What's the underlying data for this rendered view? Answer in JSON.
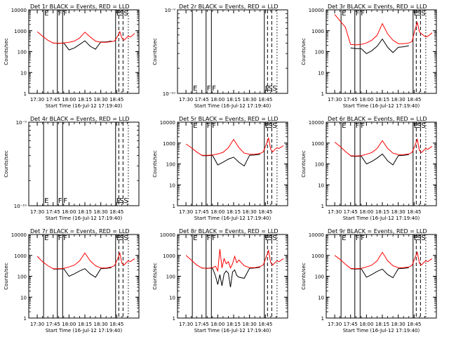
{
  "figure": {
    "panels": [
      {
        "title": "Det 1r  BLACK = Events, RED = LLD",
        "ylabel": "Counts/sec",
        "xlabel": "Start Time (16-Jul-12 17:19:40)",
        "yscale": "log",
        "ylim": [
          1,
          10000
        ],
        "yticks": [
          "1",
          "10",
          "100",
          "1000",
          "10000"
        ],
        "data_present": true
      },
      {
        "title": "Det 2r  BLACK = Events, RED = LLD",
        "ylabel": "Counts/sec",
        "xlabel": "Start Time (16-Jul-12 17:19:40)",
        "yscale": "log",
        "ylim": [
          1e-10,
          1e-09
        ],
        "yticks": [
          "10⁻¹⁰",
          "10⁻⁹"
        ],
        "data_present": false
      },
      {
        "title": "Det 3r  BLACK = Events, RED = LLD",
        "ylabel": "Counts/sec",
        "xlabel": "Start Time (16-Jul-12 17:19:40)",
        "yscale": "log",
        "ylim": [
          1,
          10000
        ],
        "yticks": [
          "1",
          "10",
          "100",
          "1000",
          "10000"
        ],
        "data_present": true
      },
      {
        "title": "Det 4r  BLACK = Events, RED = LLD",
        "ylabel": "Counts/sec",
        "xlabel": "Start Time (16-Jul-12 17:19:40)",
        "yscale": "log",
        "ylim": [
          1e-10,
          1e-09
        ],
        "yticks": [
          "10⁻¹⁰",
          "10⁻⁹"
        ],
        "data_present": false
      },
      {
        "title": "Det 5r  BLACK = Events, RED = LLD",
        "ylabel": "Counts/sec",
        "xlabel": "Start Time (16-Jul-12 17:19:40)",
        "yscale": "log",
        "ylim": [
          1,
          10000
        ],
        "yticks": [
          "1",
          "10",
          "100",
          "1000",
          "10000"
        ],
        "data_present": true
      },
      {
        "title": "Det 6r  BLACK = Events, RED = LLD",
        "ylabel": "Counts/sec",
        "xlabel": "Start Time (16-Jul-12 17:19:40)",
        "yscale": "log",
        "ylim": [
          1,
          10000
        ],
        "yticks": [
          "1",
          "10",
          "100",
          "1000",
          "10000"
        ],
        "data_present": true
      },
      {
        "title": "Det 7r  BLACK = Events, RED = LLD",
        "ylabel": "Counts/sec",
        "xlabel": "Start Time (16-Jul-12 17:19:40)",
        "yscale": "log",
        "ylim": [
          1,
          10000
        ],
        "yticks": [
          "1",
          "10",
          "100",
          "1000",
          "10000"
        ],
        "data_present": true
      },
      {
        "title": "Det 8r  BLACK = Events, RED = LLD",
        "ylabel": "Counts/sec",
        "xlabel": "Start Time (16-Jul-12 17:19:40)",
        "yscale": "log",
        "ylim": [
          1,
          10000
        ],
        "yticks": [
          "1",
          "10",
          "100",
          "1000",
          "10000"
        ],
        "data_present": true
      },
      {
        "title": "Det 9r  BLACK = Events, RED = LLD",
        "ylabel": "Counts/sec",
        "xlabel": "Start Time (16-Jul-12 17:19:40)",
        "yscale": "log",
        "ylim": [
          1,
          10000
        ],
        "yticks": [
          "1",
          "10",
          "100",
          "1000",
          "10000"
        ],
        "data_present": true
      }
    ],
    "xticks": [
      "17:30",
      "17:45",
      "18:00",
      "18:15",
      "18:30",
      "18:45"
    ],
    "markers": [
      {
        "label": "E",
        "minute": 6,
        "style": "solid"
      },
      {
        "label": "F",
        "minute": 19,
        "style": "solid"
      },
      {
        "label": "F",
        "minute": 24,
        "style": "solid"
      },
      {
        "label": "E",
        "minute": 74,
        "style": "solid"
      },
      {
        "label": "S",
        "minute": 77,
        "style": "dashed"
      },
      {
        "label": "S",
        "minute": 81,
        "style": "dashed"
      },
      {
        "label": "",
        "minute": 86,
        "style": "dotted"
      }
    ],
    "colors": {
      "events": "#000000",
      "lld": "#ff0000",
      "axes": "#000000"
    }
  },
  "chart_data": [
    {
      "type": "line",
      "title": "Det 1r  BLACK = Events, RED = LLD",
      "xlabel": "Start Time (16-Jul-12 17:19:40)",
      "ylabel": "Counts/sec",
      "ylim": [
        1,
        10000
      ],
      "x": [
        0,
        5,
        10,
        15,
        20,
        25,
        30,
        35,
        40,
        45,
        50,
        55,
        60,
        65,
        70,
        73,
        76,
        78,
        80,
        82,
        84,
        86,
        88,
        90,
        92
      ],
      "series": [
        {
          "name": "BLACK = Events",
          "values": [
            null,
            null,
            null,
            260,
            250,
            260,
            120,
            150,
            220,
            330,
            180,
            130,
            290,
            290,
            320,
            null,
            null,
            null,
            null,
            null,
            null,
            null,
            null,
            null,
            null
          ]
        },
        {
          "name": "RED = LLD",
          "values": [
            900,
            550,
            350,
            260,
            250,
            260,
            280,
            320,
            450,
            850,
            500,
            320,
            280,
            280,
            300,
            320,
            550,
            900,
            450,
            350,
            450,
            550,
            500,
            600,
            750
          ]
        }
      ]
    },
    {
      "type": "line",
      "title": "Det 2r  BLACK = Events, RED = LLD",
      "xlabel": "Start Time (16-Jul-12 17:19:40)",
      "ylabel": "Counts/sec",
      "x": [],
      "series": []
    },
    {
      "type": "line",
      "title": "Det 3r  BLACK = Events, RED = LLD",
      "xlabel": "Start Time (16-Jul-12 17:19:40)",
      "ylabel": "Counts/sec",
      "ylim": [
        1,
        10000
      ],
      "x": [
        0,
        5,
        10,
        15,
        20,
        25,
        30,
        35,
        40,
        45,
        50,
        55,
        60,
        65,
        70,
        73,
        76,
        78,
        80,
        82,
        84,
        86,
        88,
        90,
        92
      ],
      "series": [
        {
          "name": "BLACK = Events",
          "values": [
            null,
            null,
            null,
            150,
            140,
            140,
            80,
            110,
            180,
            400,
            160,
            90,
            160,
            170,
            190,
            null,
            null,
            null,
            null,
            null,
            null,
            null,
            null,
            null,
            null
          ]
        },
        {
          "name": "RED = LLD",
          "values": [
            6000,
            3000,
            1500,
            220,
            210,
            220,
            260,
            350,
            600,
            2200,
            700,
            350,
            240,
            240,
            260,
            300,
            1200,
            2500,
            900,
            700,
            600,
            500,
            550,
            650,
            800
          ]
        }
      ]
    },
    {
      "type": "line",
      "title": "Det 4r  BLACK = Events, RED = LLD",
      "xlabel": "Start Time (16-Jul-12 17:19:40)",
      "ylabel": "Counts/sec",
      "x": [],
      "series": []
    },
    {
      "type": "line",
      "title": "Det 5r  BLACK = Events, RED = LLD",
      "xlabel": "Start Time (16-Jul-12 17:19:40)",
      "ylabel": "Counts/sec",
      "ylim": [
        1,
        10000
      ],
      "x": [
        0,
        5,
        10,
        15,
        20,
        25,
        30,
        35,
        40,
        45,
        50,
        55,
        60,
        65,
        70,
        73,
        76,
        78,
        80,
        82,
        84,
        86,
        88,
        90,
        92
      ],
      "series": [
        {
          "name": "BLACK = Events",
          "values": [
            null,
            null,
            null,
            250,
            250,
            260,
            90,
            120,
            170,
            210,
            120,
            80,
            260,
            270,
            290,
            null,
            null,
            null,
            null,
            null,
            null,
            null,
            null,
            null,
            null
          ]
        },
        {
          "name": "RED = LLD",
          "values": [
            900,
            600,
            380,
            260,
            260,
            270,
            300,
            360,
            600,
            1500,
            600,
            330,
            290,
            290,
            320,
            380,
            900,
            1800,
            500,
            380,
            500,
            600,
            550,
            650,
            750
          ]
        }
      ]
    },
    {
      "type": "line",
      "title": "Det 6r  BLACK = Events, RED = LLD",
      "xlabel": "Start Time (16-Jul-12 17:19:40)",
      "ylabel": "Counts/sec",
      "ylim": [
        1,
        10000
      ],
      "x": [
        0,
        5,
        10,
        15,
        20,
        25,
        30,
        35,
        40,
        45,
        50,
        55,
        60,
        65,
        70,
        73,
        76,
        78,
        80,
        82,
        84,
        86,
        88,
        90,
        92
      ],
      "series": [
        {
          "name": "BLACK = Events",
          "values": [
            null,
            null,
            null,
            240,
            230,
            240,
            100,
            130,
            190,
            300,
            140,
            90,
            250,
            260,
            280,
            null,
            null,
            null,
            null,
            null,
            null,
            null,
            null,
            null,
            null
          ]
        },
        {
          "name": "RED = LLD",
          "values": [
            1100,
            700,
            400,
            250,
            240,
            250,
            290,
            350,
            550,
            1300,
            550,
            330,
            280,
            280,
            300,
            350,
            800,
            1500,
            450,
            350,
            450,
            550,
            500,
            600,
            700
          ]
        }
      ]
    },
    {
      "type": "line",
      "title": "Det 7r  BLACK = Events, RED = LLD",
      "xlabel": "Start Time (16-Jul-12 17:19:40)",
      "ylabel": "Counts/sec",
      "ylim": [
        1,
        10000
      ],
      "x": [
        0,
        5,
        10,
        15,
        20,
        25,
        30,
        35,
        40,
        45,
        50,
        55,
        60,
        65,
        70,
        73,
        76,
        78,
        80,
        82,
        84,
        86,
        88,
        90,
        92
      ],
      "series": [
        {
          "name": "BLACK = Events",
          "values": [
            null,
            null,
            null,
            220,
            220,
            230,
            100,
            130,
            180,
            230,
            130,
            90,
            230,
            240,
            260,
            null,
            null,
            null,
            null,
            null,
            null,
            null,
            null,
            null,
            null
          ]
        },
        {
          "name": "RED = LLD",
          "values": [
            900,
            500,
            320,
            230,
            230,
            240,
            280,
            340,
            550,
            1300,
            550,
            320,
            250,
            250,
            280,
            320,
            700,
            1300,
            420,
            350,
            450,
            550,
            500,
            600,
            700
          ]
        }
      ]
    },
    {
      "type": "line",
      "title": "Det 8r  BLACK = Events, RED = LLD",
      "xlabel": "Start Time (16-Jul-12 17:19:40)",
      "ylabel": "Counts/sec",
      "ylim": [
        1,
        10000
      ],
      "x": [
        0,
        5,
        10,
        15,
        20,
        25,
        28,
        30,
        32,
        34,
        36,
        38,
        40,
        42,
        44,
        46,
        48,
        50,
        55,
        60,
        65,
        70,
        73,
        76,
        78,
        80,
        82,
        84,
        86,
        88,
        90,
        92
      ],
      "series": [
        {
          "name": "BLACK = Events",
          "values": [
            null,
            null,
            null,
            250,
            240,
            250,
            100,
            40,
            120,
            35,
            130,
            180,
            140,
            30,
            160,
            200,
            110,
            90,
            80,
            240,
            250,
            270,
            null,
            null,
            null,
            null,
            null,
            null,
            null,
            null,
            null,
            null
          ]
        },
        {
          "name": "RED = LLD",
          "values": [
            1000,
            600,
            350,
            250,
            240,
            260,
            300,
            180,
            2000,
            250,
            700,
            400,
            500,
            250,
            400,
            900,
            450,
            600,
            320,
            260,
            260,
            290,
            350,
            900,
            1700,
            450,
            350,
            450,
            550,
            500,
            600,
            700
          ]
        }
      ]
    },
    {
      "type": "line",
      "title": "Det 9r  BLACK = Events, RED = LLD",
      "xlabel": "Start Time (16-Jul-12 17:19:40)",
      "ylabel": "Counts/sec",
      "ylim": [
        1,
        10000
      ],
      "x": [
        0,
        5,
        10,
        15,
        20,
        25,
        30,
        35,
        40,
        45,
        50,
        55,
        60,
        65,
        70,
        73,
        76,
        78,
        80,
        82,
        84,
        86,
        88,
        90,
        92
      ],
      "series": [
        {
          "name": "BLACK = Events",
          "values": [
            null,
            null,
            null,
            230,
            220,
            230,
            90,
            120,
            170,
            220,
            120,
            85,
            230,
            240,
            260,
            null,
            null,
            null,
            null,
            null,
            null,
            null,
            null,
            null,
            null
          ]
        },
        {
          "name": "RED = LLD",
          "values": [
            1000,
            650,
            380,
            240,
            230,
            240,
            280,
            340,
            550,
            1400,
            550,
            320,
            260,
            260,
            280,
            330,
            800,
            1400,
            420,
            350,
            450,
            550,
            500,
            600,
            700
          ]
        }
      ]
    }
  ]
}
